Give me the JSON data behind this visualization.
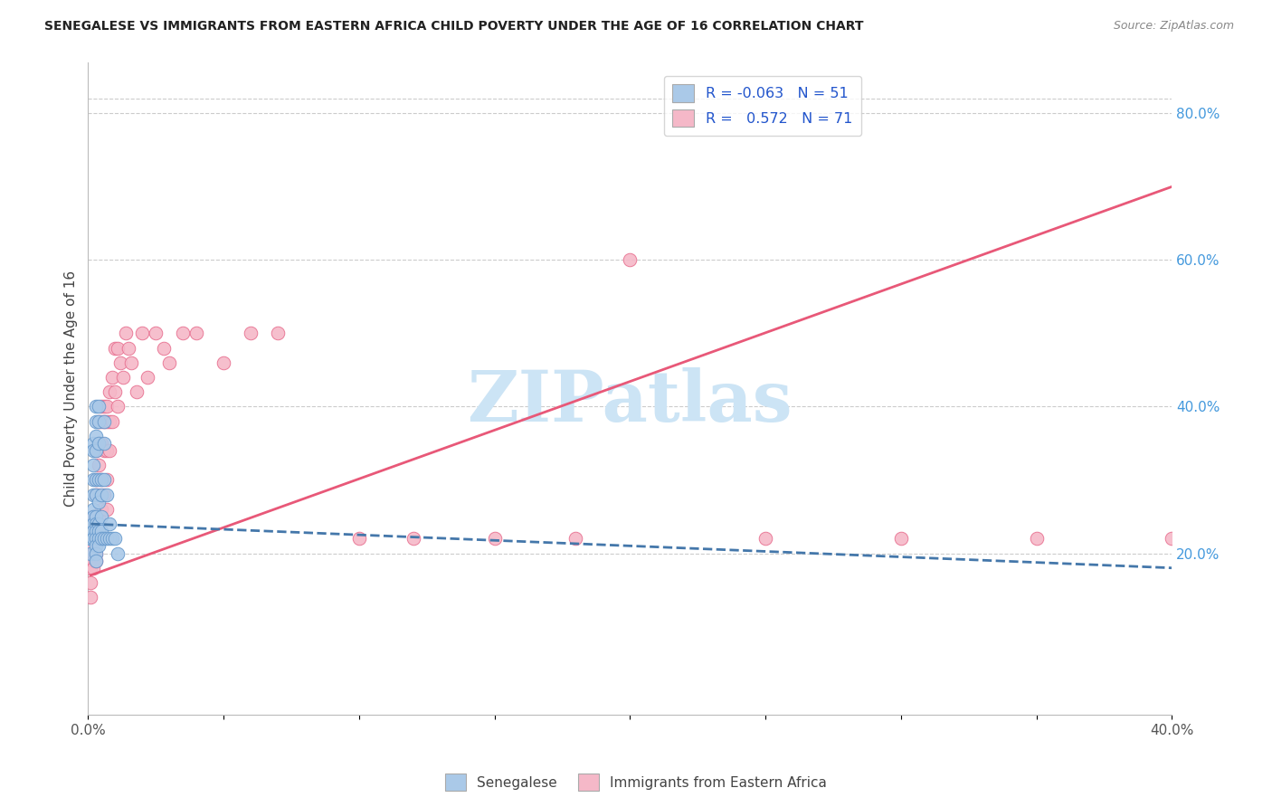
{
  "title": "SENEGALESE VS IMMIGRANTS FROM EASTERN AFRICA CHILD POVERTY UNDER THE AGE OF 16 CORRELATION CHART",
  "source": "Source: ZipAtlas.com",
  "ylabel": "Child Poverty Under the Age of 16",
  "xlim": [
    0.0,
    0.4
  ],
  "ylim": [
    -0.02,
    0.87
  ],
  "yticks_right": [
    0.2,
    0.4,
    0.6,
    0.8
  ],
  "ytick_right_labels": [
    "20.0%",
    "40.0%",
    "60.0%",
    "80.0%"
  ],
  "blue_R": -0.063,
  "blue_N": 51,
  "pink_R": 0.572,
  "pink_N": 71,
  "blue_color": "#aac9e8",
  "pink_color": "#f5b8c8",
  "blue_edge_color": "#6699cc",
  "pink_edge_color": "#e87090",
  "blue_line_color": "#4477aa",
  "pink_line_color": "#e85878",
  "watermark": "ZIPatlas",
  "watermark_color": "#cce4f5",
  "legend_label_blue": "Senegalese",
  "legend_label_pink": "Immigrants from Eastern Africa",
  "blue_x": [
    0.001,
    0.001,
    0.001,
    0.002,
    0.002,
    0.002,
    0.002,
    0.002,
    0.002,
    0.002,
    0.002,
    0.002,
    0.002,
    0.003,
    0.003,
    0.003,
    0.003,
    0.003,
    0.003,
    0.003,
    0.003,
    0.003,
    0.003,
    0.003,
    0.003,
    0.003,
    0.004,
    0.004,
    0.004,
    0.004,
    0.004,
    0.004,
    0.004,
    0.004,
    0.004,
    0.005,
    0.005,
    0.005,
    0.005,
    0.005,
    0.006,
    0.006,
    0.006,
    0.006,
    0.007,
    0.007,
    0.008,
    0.008,
    0.009,
    0.01,
    0.011
  ],
  "blue_y": [
    0.22,
    0.22,
    0.2,
    0.35,
    0.34,
    0.32,
    0.3,
    0.28,
    0.26,
    0.25,
    0.24,
    0.23,
    0.22,
    0.4,
    0.38,
    0.36,
    0.34,
    0.3,
    0.28,
    0.25,
    0.24,
    0.23,
    0.22,
    0.21,
    0.2,
    0.19,
    0.4,
    0.38,
    0.35,
    0.3,
    0.27,
    0.24,
    0.23,
    0.22,
    0.21,
    0.3,
    0.28,
    0.25,
    0.23,
    0.22,
    0.38,
    0.35,
    0.3,
    0.22,
    0.28,
    0.22,
    0.24,
    0.22,
    0.22,
    0.22,
    0.2
  ],
  "pink_x": [
    0.001,
    0.001,
    0.001,
    0.002,
    0.002,
    0.002,
    0.002,
    0.002,
    0.002,
    0.003,
    0.003,
    0.003,
    0.003,
    0.003,
    0.003,
    0.003,
    0.003,
    0.004,
    0.004,
    0.004,
    0.004,
    0.004,
    0.004,
    0.005,
    0.005,
    0.005,
    0.005,
    0.005,
    0.006,
    0.006,
    0.006,
    0.006,
    0.007,
    0.007,
    0.007,
    0.007,
    0.007,
    0.008,
    0.008,
    0.008,
    0.009,
    0.009,
    0.01,
    0.01,
    0.011,
    0.011,
    0.012,
    0.013,
    0.014,
    0.015,
    0.016,
    0.018,
    0.02,
    0.022,
    0.025,
    0.028,
    0.03,
    0.035,
    0.04,
    0.05,
    0.06,
    0.07,
    0.1,
    0.12,
    0.15,
    0.18,
    0.2,
    0.25,
    0.3,
    0.35,
    0.4
  ],
  "pink_y": [
    0.18,
    0.16,
    0.14,
    0.25,
    0.22,
    0.21,
    0.2,
    0.19,
    0.18,
    0.34,
    0.3,
    0.28,
    0.25,
    0.23,
    0.22,
    0.2,
    0.19,
    0.38,
    0.35,
    0.32,
    0.28,
    0.25,
    0.22,
    0.4,
    0.38,
    0.35,
    0.3,
    0.26,
    0.4,
    0.38,
    0.34,
    0.28,
    0.4,
    0.38,
    0.34,
    0.3,
    0.26,
    0.42,
    0.38,
    0.34,
    0.44,
    0.38,
    0.48,
    0.42,
    0.48,
    0.4,
    0.46,
    0.44,
    0.5,
    0.48,
    0.46,
    0.42,
    0.5,
    0.44,
    0.5,
    0.48,
    0.46,
    0.5,
    0.5,
    0.46,
    0.5,
    0.5,
    0.22,
    0.22,
    0.22,
    0.22,
    0.6,
    0.22,
    0.22,
    0.22,
    0.22
  ],
  "blue_line_x": [
    0.001,
    0.4
  ],
  "blue_line_y": [
    0.24,
    0.18
  ],
  "pink_line_x": [
    0.001,
    0.4
  ],
  "pink_line_y": [
    0.17,
    0.7
  ]
}
